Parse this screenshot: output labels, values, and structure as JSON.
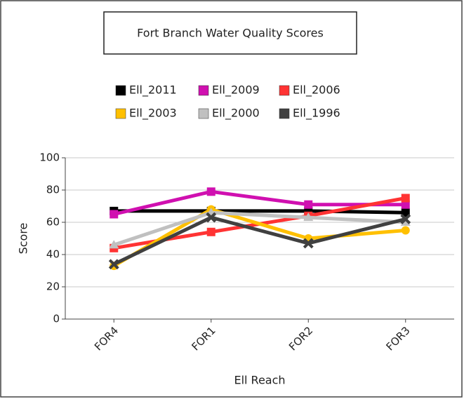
{
  "chart_data": {
    "type": "line",
    "title": "Fort Branch Water Quality Scores",
    "x_label": "Ell Reach",
    "y_label": "Score",
    "categories": [
      "FOR4",
      "FOR1",
      "FOR2",
      "FOR3"
    ],
    "ylim": [
      0,
      100
    ],
    "yticks": [
      0,
      20,
      40,
      60,
      80,
      100
    ],
    "grid": true,
    "series": [
      {
        "name": "Ell_2011",
        "color": "#000000",
        "marker": "square",
        "values": [
          67,
          67,
          67,
          66
        ]
      },
      {
        "name": "Ell_2009",
        "color": "#d010b0",
        "marker": "square",
        "values": [
          65,
          79,
          71,
          71
        ]
      },
      {
        "name": "Ell_2006",
        "color": "#ff3333",
        "marker": "square",
        "values": [
          44,
          54,
          64,
          75
        ]
      },
      {
        "name": "Ell_2003",
        "color": "#ffc000",
        "marker": "circle",
        "values": [
          33,
          68,
          50,
          55
        ]
      },
      {
        "name": "Ell_2000",
        "color": "#c0c0c0",
        "marker": "triangle",
        "values": [
          46,
          66,
          63,
          60
        ]
      },
      {
        "name": "Ell_1996",
        "color": "#404040",
        "marker": "cross",
        "values": [
          34,
          63,
          47,
          62
        ]
      }
    ]
  }
}
